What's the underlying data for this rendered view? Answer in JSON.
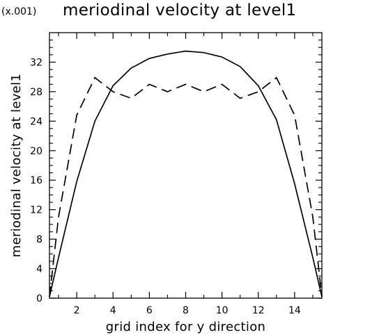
{
  "chart_data": {
    "type": "line",
    "title": "meriodinal velocity at level1",
    "scale_note": "(x.001)",
    "xlabel": "grid index for y direction",
    "ylabel": "meriodinal velocity at level1",
    "xlim": [
      0.5,
      15.5
    ],
    "ylim": [
      0,
      36
    ],
    "x_ticks": [
      2,
      4,
      6,
      8,
      10,
      12,
      14
    ],
    "y_ticks": [
      0,
      4,
      8,
      12,
      16,
      20,
      24,
      28,
      32
    ],
    "grid": false,
    "series": [
      {
        "style": "solid",
        "x": [
          0.5,
          1,
          2,
          3,
          4,
          5,
          6,
          7,
          8,
          9,
          10,
          11,
          12,
          13,
          14,
          15,
          15.5
        ],
        "y": [
          0.2,
          5.5,
          15.8,
          24.0,
          28.8,
          31.2,
          32.5,
          33.1,
          33.5,
          33.3,
          32.7,
          31.4,
          28.8,
          24.2,
          15.5,
          5.5,
          0.2
        ]
      },
      {
        "style": "dashed",
        "x": [
          0.5,
          1,
          2,
          3,
          4,
          5,
          6,
          7,
          8,
          9,
          10,
          11,
          12,
          13,
          14,
          15,
          15.5
        ],
        "y": [
          0.2,
          11.0,
          24.8,
          29.9,
          28.0,
          27.1,
          29.0,
          28.0,
          29.0,
          28.0,
          29.0,
          27.1,
          28.0,
          29.9,
          24.8,
          11.0,
          0.2
        ]
      }
    ]
  }
}
